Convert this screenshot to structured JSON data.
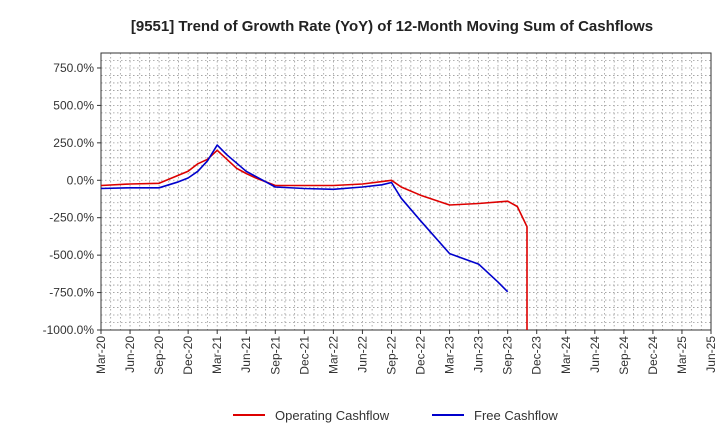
{
  "chart_data": {
    "type": "line",
    "title": "[9551]  Trend of Growth Rate (YoY) of 12-Month Moving Sum of Cashflows",
    "xlabel": "",
    "ylabel": "",
    "x_ticks": [
      "Mar-20",
      "Jun-20",
      "Sep-20",
      "Dec-20",
      "Mar-21",
      "Jun-21",
      "Sep-21",
      "Dec-21",
      "Mar-22",
      "Jun-22",
      "Sep-22",
      "Dec-22",
      "Mar-23",
      "Jun-23",
      "Sep-23",
      "Dec-23",
      "Mar-24",
      "Jun-24",
      "Sep-24",
      "Dec-24",
      "Mar-25",
      "Jun-25"
    ],
    "y_ticks": [
      {
        "value": 750,
        "label": "750.0%"
      },
      {
        "value": 500,
        "label": "500.0%"
      },
      {
        "value": 250,
        "label": "250.0%"
      },
      {
        "value": 0,
        "label": "0.0%"
      },
      {
        "value": -250,
        "label": "-250.0%"
      },
      {
        "value": -500,
        "label": "-500.0%"
      },
      {
        "value": -750,
        "label": "-750.0%"
      },
      {
        "value": -1000,
        "label": "-1000.0%"
      }
    ],
    "ylim": [
      -1000,
      850
    ],
    "grid": true,
    "legend_position": "bottom",
    "series": [
      {
        "name": "Operating Cashflow",
        "color": "#dd0000",
        "points": [
          [
            "Mar-20",
            -35
          ],
          [
            "Jun-20",
            -25
          ],
          [
            "Sep-20",
            -20
          ],
          [
            "Dec-20",
            60
          ],
          [
            "Jan-21",
            110
          ],
          [
            "Feb-21",
            140
          ],
          [
            "Mar-21",
            200
          ],
          [
            "Apr-21",
            140
          ],
          [
            "May-21",
            80
          ],
          [
            "Jun-21",
            45
          ],
          [
            "Jul-21",
            15
          ],
          [
            "Sep-21",
            -35
          ],
          [
            "Dec-21",
            -35
          ],
          [
            "Mar-22",
            -35
          ],
          [
            "Jun-22",
            -25
          ],
          [
            "Sep-22",
            0
          ],
          [
            "Oct-22",
            -45
          ],
          [
            "Dec-22",
            -100
          ],
          [
            "Mar-23",
            -165
          ],
          [
            "Jun-23",
            -155
          ],
          [
            "Sep-23",
            -140
          ],
          [
            "Oct-23",
            -175
          ],
          [
            "Nov-23",
            -310
          ],
          [
            "Nov-23",
            -1000
          ]
        ]
      },
      {
        "name": "Free Cashflow",
        "color": "#0000cc",
        "points": [
          [
            "Mar-20",
            -55
          ],
          [
            "Jun-20",
            -50
          ],
          [
            "Sep-20",
            -50
          ],
          [
            "Nov-20",
            -10
          ],
          [
            "Dec-20",
            15
          ],
          [
            "Jan-21",
            60
          ],
          [
            "Feb-21",
            130
          ],
          [
            "Mar-21",
            235
          ],
          [
            "Apr-21",
            170
          ],
          [
            "Jun-21",
            60
          ],
          [
            "Sep-21",
            -45
          ],
          [
            "Dec-21",
            -55
          ],
          [
            "Mar-22",
            -60
          ],
          [
            "Jun-22",
            -45
          ],
          [
            "Aug-22",
            -30
          ],
          [
            "Sep-22",
            -15
          ],
          [
            "Oct-22",
            -120
          ],
          [
            "Dec-22",
            -270
          ],
          [
            "Mar-23",
            -490
          ],
          [
            "Jun-23",
            -560
          ],
          [
            "Aug-23",
            -680
          ],
          [
            "Sep-23",
            -745
          ]
        ]
      }
    ]
  }
}
